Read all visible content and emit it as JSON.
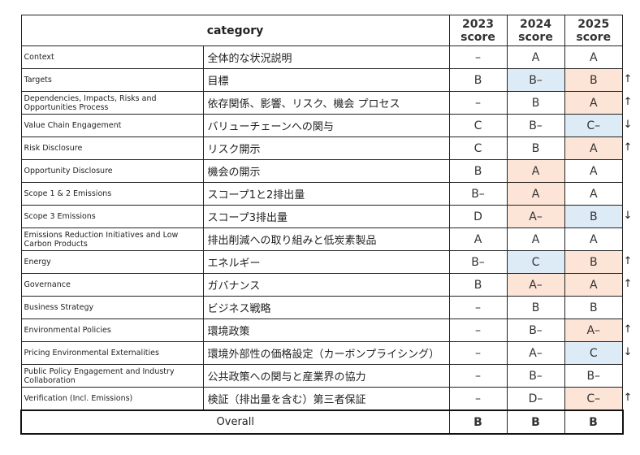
{
  "header": {
    "category": "category",
    "years": [
      "2023\nscore",
      "2024\nscore",
      "2025\nscore"
    ]
  },
  "colors": {
    "improved": "#fce4d6",
    "declined": "#ddebf7"
  },
  "rows": [
    {
      "en": "Context",
      "ja": "全体的な状況説明",
      "s": [
        "–",
        "A",
        "A"
      ],
      "hl": [
        "",
        "",
        ""
      ],
      "trend": ""
    },
    {
      "en": "Targets",
      "ja": "目標",
      "s": [
        "B",
        "B–",
        "B"
      ],
      "hl": [
        "",
        "down",
        "up"
      ],
      "trend": "↑"
    },
    {
      "en": "Dependencies, Impacts, Risks and Opportunities Process",
      "ja": "依存関係、影響、リスク、機会 プロセス",
      "s": [
        "–",
        "B",
        "A"
      ],
      "hl": [
        "",
        "",
        "up"
      ],
      "trend": "↑"
    },
    {
      "en": "Value Chain Engagement",
      "ja": "バリューチェーンへの関与",
      "s": [
        "C",
        "B–",
        "C–"
      ],
      "hl": [
        "",
        "",
        "down"
      ],
      "trend": "↓"
    },
    {
      "en": "Risk Disclosure",
      "ja": "リスク開示",
      "s": [
        "C",
        "B",
        "A"
      ],
      "hl": [
        "",
        "",
        "up"
      ],
      "trend": "↑"
    },
    {
      "en": "Opportunity Disclosure",
      "ja": "機会の開示",
      "s": [
        "B",
        "A",
        "A"
      ],
      "hl": [
        "",
        "up",
        ""
      ],
      "trend": ""
    },
    {
      "en": "Scope 1 & 2 Emissions",
      "ja": "スコープ1と2排出量",
      "s": [
        "B–",
        "A",
        "A"
      ],
      "hl": [
        "",
        "up",
        ""
      ],
      "trend": ""
    },
    {
      "en": "Scope 3 Emissions",
      "ja": "スコープ3排出量",
      "s": [
        "D",
        "A–",
        "B"
      ],
      "hl": [
        "",
        "up",
        "down"
      ],
      "trend": "↓"
    },
    {
      "en": "Emissions Reduction Initiatives and Low Carbon Products",
      "ja": "排出削減への取り組みと低炭素製品",
      "s": [
        "A",
        "A",
        "A"
      ],
      "hl": [
        "",
        "",
        ""
      ],
      "trend": ""
    },
    {
      "en": "Energy",
      "ja": "エネルギー",
      "s": [
        "B–",
        "C",
        "B"
      ],
      "hl": [
        "",
        "down",
        "up"
      ],
      "trend": "↑"
    },
    {
      "en": "Governance",
      "ja": "ガバナンス",
      "s": [
        "B",
        "A–",
        "A"
      ],
      "hl": [
        "",
        "up",
        "up"
      ],
      "trend": "↑"
    },
    {
      "en": "Business Strategy",
      "ja": "ビジネス戦略",
      "s": [
        "–",
        "B",
        "B"
      ],
      "hl": [
        "",
        "",
        ""
      ],
      "trend": ""
    },
    {
      "en": "Environmental Policies",
      "ja": "環境政策",
      "s": [
        "–",
        "B–",
        "A–"
      ],
      "hl": [
        "",
        "",
        "up"
      ],
      "trend": "↑"
    },
    {
      "en": "Pricing Environmental Externalities",
      "ja": "環境外部性の価格設定（カーボンプライシング）",
      "s": [
        "–",
        "A–",
        "C"
      ],
      "hl": [
        "",
        "",
        "down"
      ],
      "trend": "↓"
    },
    {
      "en": "Public Policy Engagement and Industry Collaboration",
      "ja": "公共政策への関与と産業界の協力",
      "s": [
        "–",
        "B–",
        "B–"
      ],
      "hl": [
        "",
        "",
        ""
      ],
      "trend": ""
    },
    {
      "en": "Verification (Incl. Emissions)",
      "ja": "検証（排出量を含む）第三者保証",
      "s": [
        "–",
        "D–",
        "C–"
      ],
      "hl": [
        "",
        "",
        "up"
      ],
      "trend": "↑"
    }
  ],
  "overall": {
    "label": "Overall",
    "s": [
      "B",
      "B",
      "B"
    ]
  }
}
